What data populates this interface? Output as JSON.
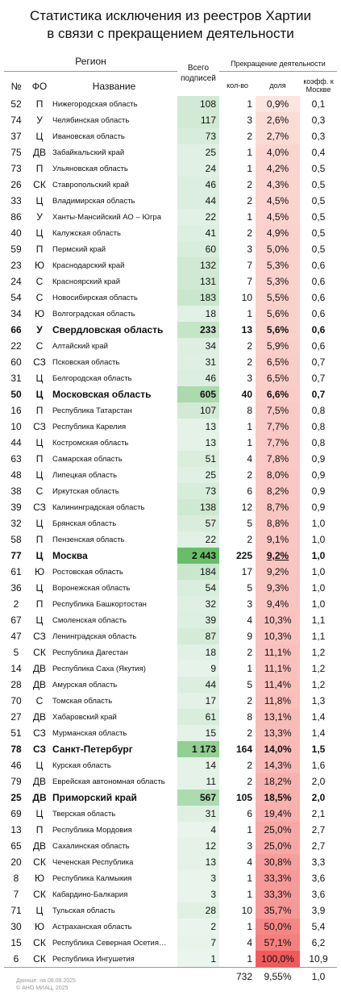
{
  "title": [
    "Статистика исключения из реестров Хартии",
    "в связи с прекращением деятельности"
  ],
  "header": {
    "region": "Регион",
    "num": "№",
    "fo": "ФО",
    "name": "Название",
    "total": "Всего подписей",
    "stop": "Прекращение деятельности",
    "count": "кол-во",
    "share": "доля",
    "coef": "коэфф. к Москве"
  },
  "rows": [
    {
      "num": "52",
      "fo": "П",
      "name": "Нижегородская область",
      "total": "108",
      "count": "1",
      "share": "0,9%",
      "coef": "0,1"
    },
    {
      "num": "74",
      "fo": "У",
      "name": "Челябинская область",
      "total": "117",
      "count": "3",
      "share": "2,6%",
      "coef": "0,3"
    },
    {
      "num": "37",
      "fo": "Ц",
      "name": "Ивановская область",
      "total": "73",
      "count": "2",
      "share": "2,7%",
      "coef": "0,3"
    },
    {
      "num": "75",
      "fo": "ДВ",
      "name": "Забайкальский край",
      "total": "25",
      "count": "1",
      "share": "4,0%",
      "coef": "0,4"
    },
    {
      "num": "73",
      "fo": "П",
      "name": "Ульяновская область",
      "total": "24",
      "count": "1",
      "share": "4,2%",
      "coef": "0,5"
    },
    {
      "num": "26",
      "fo": "СК",
      "name": "Ставропольский край",
      "total": "46",
      "count": "2",
      "share": "4,3%",
      "coef": "0,5"
    },
    {
      "num": "33",
      "fo": "Ц",
      "name": "Владимирская область",
      "total": "44",
      "count": "2",
      "share": "4,5%",
      "coef": "0,5"
    },
    {
      "num": "86",
      "fo": "У",
      "name": "Ханты-Мансийский АО – Югра",
      "total": "22",
      "count": "1",
      "share": "4,5%",
      "coef": "0,5"
    },
    {
      "num": "40",
      "fo": "Ц",
      "name": "Калужская область",
      "total": "41",
      "count": "2",
      "share": "4,9%",
      "coef": "0,5"
    },
    {
      "num": "59",
      "fo": "П",
      "name": "Пермский край",
      "total": "60",
      "count": "3",
      "share": "5,0%",
      "coef": "0,5"
    },
    {
      "num": "23",
      "fo": "Ю",
      "name": "Краснодарский край",
      "total": "132",
      "count": "7",
      "share": "5,3%",
      "coef": "0,6"
    },
    {
      "num": "24",
      "fo": "С",
      "name": "Красноярский край",
      "total": "131",
      "count": "7",
      "share": "5,3%",
      "coef": "0,6"
    },
    {
      "num": "54",
      "fo": "С",
      "name": "Новосибирская область",
      "total": "183",
      "count": "10",
      "share": "5,5%",
      "coef": "0,6"
    },
    {
      "num": "34",
      "fo": "Ю",
      "name": "Волгоградская область",
      "total": "18",
      "count": "1",
      "share": "5,6%",
      "coef": "0,6"
    },
    {
      "num": "66",
      "fo": "У",
      "name": "Свердловская область",
      "total": "233",
      "count": "13",
      "share": "5,6%",
      "coef": "0,6",
      "bold": true
    },
    {
      "num": "22",
      "fo": "С",
      "name": "Алтайский край",
      "total": "34",
      "count": "2",
      "share": "5,9%",
      "coef": "0,6"
    },
    {
      "num": "60",
      "fo": "СЗ",
      "name": "Псковская область",
      "total": "31",
      "count": "2",
      "share": "6,5%",
      "coef": "0,7"
    },
    {
      "num": "31",
      "fo": "Ц",
      "name": "Белгородская область",
      "total": "46",
      "count": "3",
      "share": "6,5%",
      "coef": "0,7"
    },
    {
      "num": "50",
      "fo": "Ц",
      "name": "Московская область",
      "total": "605",
      "count": "40",
      "share": "6,6%",
      "coef": "0,7",
      "bold": true
    },
    {
      "num": "16",
      "fo": "П",
      "name": "Республика Татарстан",
      "total": "107",
      "count": "8",
      "share": "7,5%",
      "coef": "0,8"
    },
    {
      "num": "10",
      "fo": "СЗ",
      "name": "Республика Карелия",
      "total": "13",
      "count": "1",
      "share": "7,7%",
      "coef": "0,8"
    },
    {
      "num": "44",
      "fo": "Ц",
      "name": "Костромская область",
      "total": "13",
      "count": "1",
      "share": "7,7%",
      "coef": "0,8"
    },
    {
      "num": "63",
      "fo": "П",
      "name": "Самарская область",
      "total": "51",
      "count": "4",
      "share": "7,8%",
      "coef": "0,9"
    },
    {
      "num": "48",
      "fo": "Ц",
      "name": "Липецкая область",
      "total": "25",
      "count": "2",
      "share": "8,0%",
      "coef": "0,9"
    },
    {
      "num": "38",
      "fo": "С",
      "name": "Иркутская область",
      "total": "73",
      "count": "6",
      "share": "8,2%",
      "coef": "0,9"
    },
    {
      "num": "39",
      "fo": "СЗ",
      "name": "Калининградская область",
      "total": "138",
      "count": "12",
      "share": "8,7%",
      "coef": "0,9"
    },
    {
      "num": "32",
      "fo": "Ц",
      "name": "Брянская область",
      "total": "57",
      "count": "5",
      "share": "8,8%",
      "coef": "1,0"
    },
    {
      "num": "58",
      "fo": "П",
      "name": "Пензенская область",
      "total": "22",
      "count": "2",
      "share": "9,1%",
      "coef": "1,0"
    },
    {
      "num": "77",
      "fo": "Ц",
      "name": "Москва",
      "total": "2 443",
      "count": "225",
      "share": "9,2%",
      "coef": "1,0",
      "bold": true,
      "share_underlined": true
    },
    {
      "num": "61",
      "fo": "Ю",
      "name": "Ростовская область",
      "total": "184",
      "count": "17",
      "share": "9,2%",
      "coef": "1,0"
    },
    {
      "num": "36",
      "fo": "Ц",
      "name": "Воронежская область",
      "total": "54",
      "count": "5",
      "share": "9,3%",
      "coef": "1,0"
    },
    {
      "num": "2",
      "fo": "П",
      "name": "Республика Башкортостан",
      "total": "32",
      "count": "3",
      "share": "9,4%",
      "coef": "1,0"
    },
    {
      "num": "67",
      "fo": "Ц",
      "name": "Смоленская область",
      "total": "39",
      "count": "4",
      "share": "10,3%",
      "coef": "1,1"
    },
    {
      "num": "47",
      "fo": "СЗ",
      "name": "Ленинградская область",
      "total": "87",
      "count": "9",
      "share": "10,3%",
      "coef": "1,1"
    },
    {
      "num": "5",
      "fo": "СК",
      "name": "Республика Дагестан",
      "total": "18",
      "count": "2",
      "share": "11,1%",
      "coef": "1,2"
    },
    {
      "num": "14",
      "fo": "ДВ",
      "name": "Республика Саха (Якутия)",
      "total": "9",
      "count": "1",
      "share": "11,1%",
      "coef": "1,2"
    },
    {
      "num": "28",
      "fo": "ДВ",
      "name": "Амурская область",
      "total": "44",
      "count": "5",
      "share": "11,4%",
      "coef": "1,2"
    },
    {
      "num": "70",
      "fo": "С",
      "name": "Томская область",
      "total": "17",
      "count": "2",
      "share": "11,8%",
      "coef": "1,3"
    },
    {
      "num": "27",
      "fo": "ДВ",
      "name": "Хабаровский край",
      "total": "61",
      "count": "8",
      "share": "13,1%",
      "coef": "1,4"
    },
    {
      "num": "51",
      "fo": "СЗ",
      "name": "Мурманская область",
      "total": "15",
      "count": "2",
      "share": "13,3%",
      "coef": "1,4"
    },
    {
      "num": "78",
      "fo": "СЗ",
      "name": "Санкт-Петербург",
      "total": "1 173",
      "count": "164",
      "share": "14,0%",
      "coef": "1,5",
      "bold": true
    },
    {
      "num": "46",
      "fo": "Ц",
      "name": "Курская область",
      "total": "14",
      "count": "2",
      "share": "14,3%",
      "coef": "1,6"
    },
    {
      "num": "79",
      "fo": "ДВ",
      "name": "Еврейская автономная область",
      "total": "11",
      "count": "2",
      "share": "18,2%",
      "coef": "2,0"
    },
    {
      "num": "25",
      "fo": "ДВ",
      "name": "Приморский край",
      "total": "567",
      "count": "105",
      "share": "18,5%",
      "coef": "2,0",
      "bold": true
    },
    {
      "num": "69",
      "fo": "Ц",
      "name": "Тверская область",
      "total": "31",
      "count": "6",
      "share": "19,4%",
      "coef": "2,1"
    },
    {
      "num": "13",
      "fo": "П",
      "name": "Республика Мордовия",
      "total": "4",
      "count": "1",
      "share": "25,0%",
      "coef": "2,7"
    },
    {
      "num": "65",
      "fo": "ДВ",
      "name": "Сахалинская область",
      "total": "12",
      "count": "3",
      "share": "25,0%",
      "coef": "2,7"
    },
    {
      "num": "20",
      "fo": "СК",
      "name": "Чеченская Республика",
      "total": "13",
      "count": "4",
      "share": "30,8%",
      "coef": "3,3"
    },
    {
      "num": "8",
      "fo": "Ю",
      "name": "Республика Калмыкия",
      "total": "3",
      "count": "1",
      "share": "33,3%",
      "coef": "3,6"
    },
    {
      "num": "7",
      "fo": "СК",
      "name": "Кабардино-Балкария",
      "total": "3",
      "count": "1",
      "share": "33,3%",
      "coef": "3,6"
    },
    {
      "num": "71",
      "fo": "Ц",
      "name": "Тульская область",
      "total": "28",
      "count": "10",
      "share": "35,7%",
      "coef": "3,9"
    },
    {
      "num": "30",
      "fo": "Ю",
      "name": "Астраханская область",
      "total": "2",
      "count": "1",
      "share": "50,0%",
      "coef": "5,4"
    },
    {
      "num": "15",
      "fo": "СК",
      "name": "Республика Северная Осетия…",
      "total": "7",
      "count": "4",
      "share": "57,1%",
      "coef": "6,2"
    },
    {
      "num": "6",
      "fo": "СК",
      "name": "Республика Ингушетия",
      "total": "1",
      "count": "1",
      "share": "100,0%",
      "coef": "10,9"
    }
  ],
  "totals": {
    "count": "732",
    "share": "9,55%",
    "coef": "1,0"
  },
  "footer": {
    "source": "Данные: на 08.08.2025",
    "copyright": "© АНО МИАЦ, 2025"
  }
}
